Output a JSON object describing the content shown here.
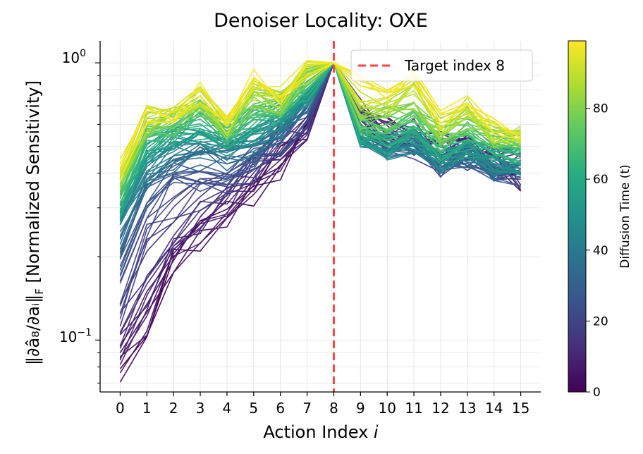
{
  "chart_data": {
    "type": "line",
    "title": "Denoiser Locality: OXE",
    "xlabel_prefix": "Action Index ",
    "xlabel_var": "i",
    "ylabel_norm": "‖∂â₈/∂aᵢ‖",
    "ylabel_sub": "F",
    "ylabel_text": " [Normalized Sensitivity]",
    "yscale": "log",
    "ylim": [
      0.065,
      1.2
    ],
    "xlim": [
      -0.75,
      15.75
    ],
    "x": [
      0,
      1,
      2,
      3,
      4,
      5,
      6,
      7,
      8,
      9,
      10,
      11,
      12,
      13,
      14,
      15
    ],
    "x_tick_labels": [
      "0",
      "1",
      "2",
      "3",
      "4",
      "5",
      "6",
      "7",
      "8",
      "9",
      "10",
      "11",
      "12",
      "13",
      "14",
      "15"
    ],
    "y_ticks": [
      {
        "value": 1.0,
        "base": "10",
        "exp": "0"
      },
      {
        "value": 0.1,
        "base": "10",
        "exp": "−1"
      }
    ],
    "target_line": {
      "x": 8,
      "label": "Target index 8",
      "color": "#ff4444"
    },
    "legend_position": "top-right",
    "colorbar": {
      "label": "Diffusion Time (t)",
      "colormap": "viridis",
      "range": [
        0,
        99
      ],
      "ticks": [
        "0",
        "20",
        "40",
        "60",
        "80"
      ],
      "tick_values": [
        0,
        20,
        40,
        60,
        80
      ]
    },
    "series_summary": "One curve per diffusion step t = 0..99, colored by t",
    "series_anchors": [
      {
        "t": 0,
        "values": [
          0.075,
          0.11,
          0.19,
          0.23,
          0.28,
          0.34,
          0.42,
          0.55,
          1.0,
          0.62,
          0.55,
          0.52,
          0.46,
          0.47,
          0.43,
          0.39
        ]
      },
      {
        "t": 10,
        "values": [
          0.095,
          0.14,
          0.22,
          0.27,
          0.32,
          0.39,
          0.47,
          0.62,
          1.0,
          0.66,
          0.57,
          0.54,
          0.49,
          0.49,
          0.45,
          0.43
        ]
      },
      {
        "t": 20,
        "values": [
          0.14,
          0.26,
          0.33,
          0.36,
          0.38,
          0.43,
          0.53,
          0.68,
          1.0,
          0.61,
          0.52,
          0.52,
          0.45,
          0.46,
          0.43,
          0.42
        ]
      },
      {
        "t": 30,
        "values": [
          0.21,
          0.35,
          0.43,
          0.45,
          0.44,
          0.47,
          0.55,
          0.7,
          1.0,
          0.55,
          0.5,
          0.51,
          0.43,
          0.46,
          0.4,
          0.39
        ]
      },
      {
        "t": 45,
        "values": [
          0.27,
          0.42,
          0.5,
          0.53,
          0.49,
          0.53,
          0.6,
          0.74,
          1.0,
          0.54,
          0.49,
          0.52,
          0.44,
          0.48,
          0.43,
          0.42
        ]
      },
      {
        "t": 60,
        "values": [
          0.31,
          0.5,
          0.56,
          0.61,
          0.53,
          0.62,
          0.67,
          0.8,
          1.0,
          0.56,
          0.52,
          0.55,
          0.47,
          0.51,
          0.47,
          0.46
        ]
      },
      {
        "t": 75,
        "values": [
          0.36,
          0.58,
          0.6,
          0.7,
          0.57,
          0.71,
          0.7,
          0.87,
          1.0,
          0.62,
          0.62,
          0.67,
          0.55,
          0.6,
          0.53,
          0.52
        ]
      },
      {
        "t": 99,
        "values": [
          0.42,
          0.68,
          0.65,
          0.8,
          0.62,
          0.86,
          0.78,
          0.95,
          1.0,
          0.85,
          0.77,
          0.9,
          0.64,
          0.73,
          0.58,
          0.56
        ]
      }
    ]
  }
}
